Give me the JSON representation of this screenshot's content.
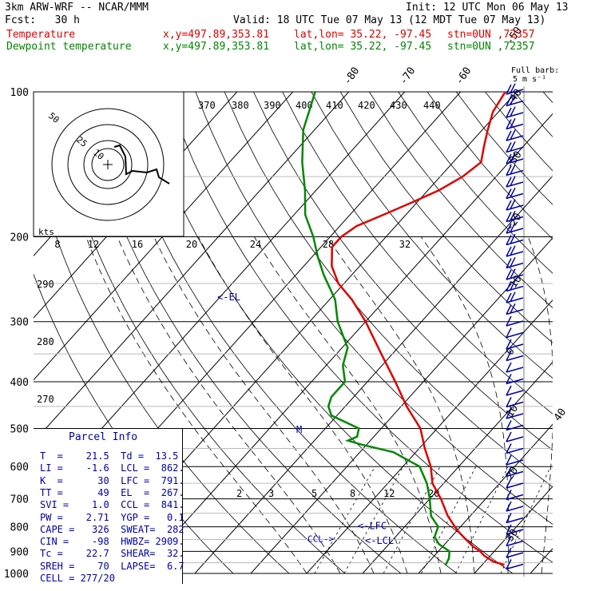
{
  "header": {
    "model": "3km ARW-WRF -- NCAR/MMM",
    "init": "Init: 12 UTC Mon 06 May 13",
    "fcst": "Fcst:   30 h",
    "valid": "Valid: 18 UTC Tue 07 May 13 (12 MDT Tue 07 May 13)",
    "temp_label": "Temperature",
    "dew_label": "Dewpoint temperature",
    "xy": "x,y=497.89,353.81",
    "latlon": "lat,lon= 35.22, -97.45",
    "stn": "stn=0UN ,72357"
  },
  "colors": {
    "temperature": "#e00000",
    "dewpoint": "#008800",
    "text": "#0000aa",
    "grid": "#000000"
  },
  "barb_label": {
    "line1": "Full barb:",
    "line2": "5 m s⁻¹"
  },
  "hodograph": {
    "units": "kts",
    "ring_labels": [
      "50",
      "25",
      "10"
    ],
    "speed_ticks": [
      "8",
      "12",
      "16",
      "20",
      "24",
      "28",
      "32"
    ]
  },
  "theta_labels": [
    "370",
    "380",
    "390",
    "400",
    "410",
    "420",
    "430",
    "440"
  ],
  "theta_left_labels": [
    "290",
    "280",
    "270"
  ],
  "mixing_labels": [
    "2",
    "3",
    "5",
    "8",
    "12",
    "20"
  ],
  "annotations": {
    "el": "<-EL",
    "m": "M",
    "lfc": "<-LFC",
    "lcl": "<-LCL",
    "ccl": "CCL->"
  },
  "parcel": {
    "title": "Parcel Info",
    "rows": [
      "T  =    21.5  Td =  13.5",
      "LI =    -1.6  LCL =  862.",
      "K  =      30  LFC =  791.",
      "TT =      49  EL  =  267.",
      "SVI =    1.0  CCL =  841.",
      "PW =    2.71  YGP =   0.1",
      "CAPE =   326  SWEAT=  282",
      "CIN =    -98  HWBZ= 2909.",
      "Tc =    22.7  SHEAR=  32.",
      "SREH =    70  LAPSE=  6.7",
      "CELL = 277/20"
    ]
  },
  "chart_data": {
    "type": "line",
    "title": "",
    "xlabel": "",
    "ylabel": "",
    "pressure_levels": [
      "100",
      "200",
      "300",
      "400",
      "500",
      "600",
      "700",
      "800",
      "900",
      "1000"
    ],
    "temperature_ticks": [
      "-80",
      "-70",
      "-60",
      "-50",
      "-40",
      "-30",
      "-20",
      "-10",
      "0",
      "10",
      "20",
      "30",
      "40"
    ],
    "ylim": [
      1000,
      100
    ],
    "xlim": [
      -40,
      40
    ],
    "series": [
      {
        "name": "Temperature",
        "pressure": [
          960,
          945,
          920,
          900,
          880,
          850,
          820,
          800,
          760,
          700,
          650,
          600,
          550,
          500,
          450,
          400,
          350,
          300,
          270,
          250,
          230,
          210,
          200,
          190,
          180,
          170,
          160,
          150,
          140,
          130,
          120,
          110,
          100
        ],
        "values": [
          24,
          21.5,
          19,
          17.5,
          15.5,
          13,
          10.5,
          9,
          6,
          2,
          -2,
          -5,
          -9,
          -13,
          -19,
          -25,
          -32,
          -40,
          -46,
          -51,
          -55,
          -58,
          -58,
          -57,
          -54,
          -51,
          -48,
          -46,
          -45,
          -47,
          -49,
          -51,
          -52
        ]
      },
      {
        "name": "Dewpoint temperature",
        "pressure": [
          960,
          930,
          900,
          870,
          840,
          800,
          760,
          700,
          650,
          600,
          560,
          540,
          530,
          520,
          500,
          470,
          450,
          430,
          400,
          370,
          340,
          300,
          270,
          240,
          220,
          200,
          180,
          160,
          140,
          120,
          100
        ],
        "values": [
          13.5,
          13,
          12,
          9,
          7,
          6,
          3,
          0,
          -3,
          -7,
          -14,
          -21,
          -24,
          -23,
          -24,
          -31,
          -33,
          -34,
          -34,
          -37,
          -39,
          -45,
          -49,
          -55,
          -59,
          -63,
          -68,
          -72,
          -77,
          -82,
          -86
        ]
      }
    ],
    "annotations": {
      "EL": 267,
      "LFC": 791,
      "LCL": 862,
      "CCL": 841
    }
  }
}
